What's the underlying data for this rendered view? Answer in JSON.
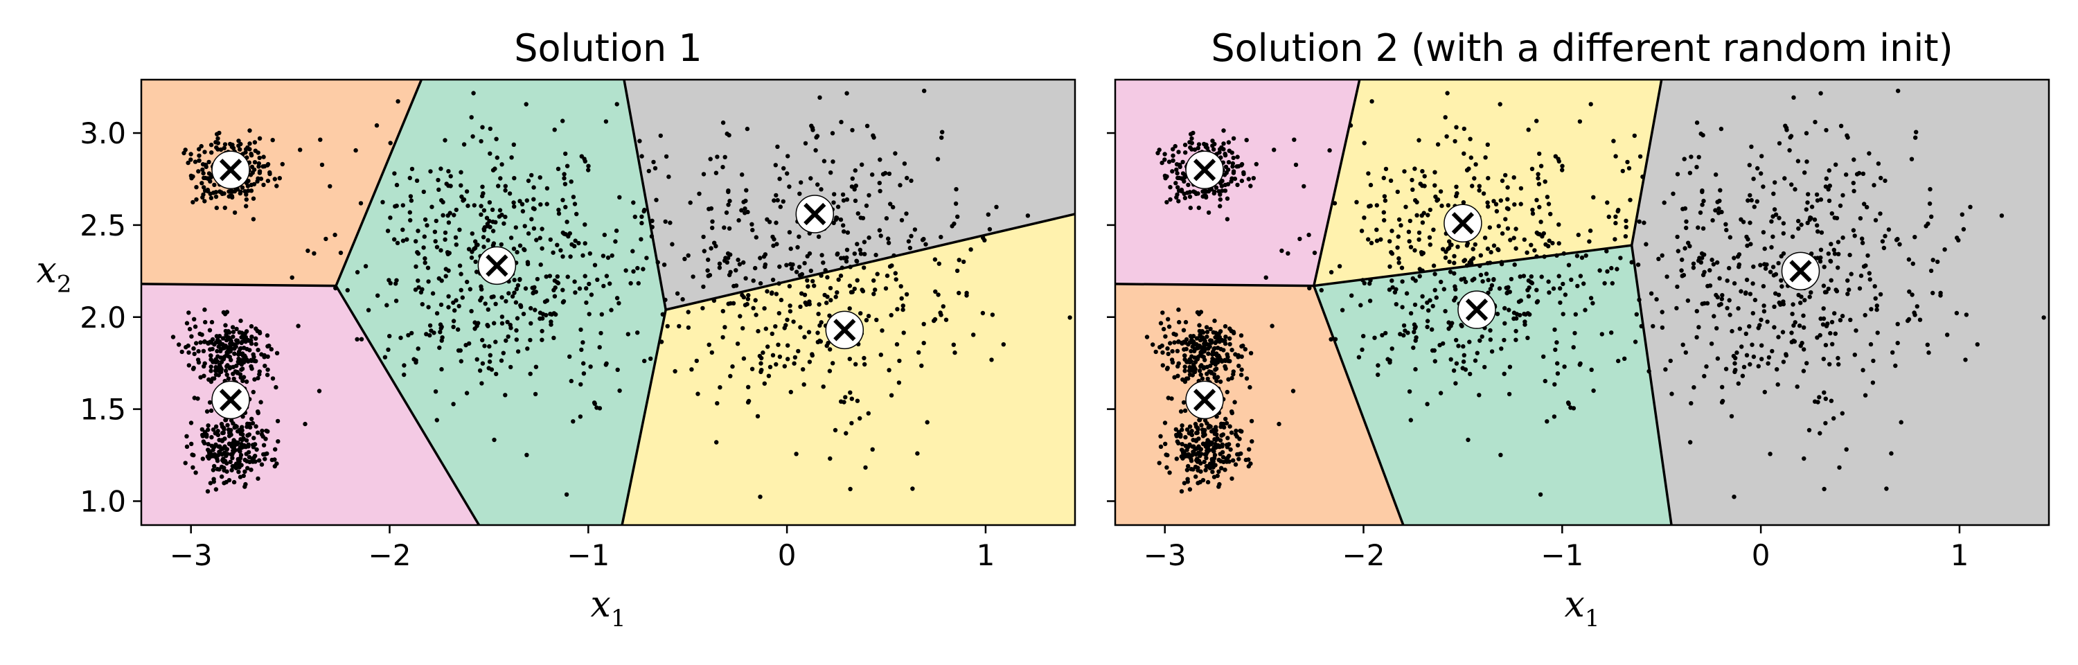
{
  "figure": {
    "title_left": "Solution 1",
    "title_right": "Solution 2 (with a different random init)"
  },
  "chart_data": [
    {
      "type": "scatter",
      "title": "Solution 1",
      "xlabel": "x1",
      "ylabel": "x2",
      "xlim": [
        -3.25,
        1.45
      ],
      "ylim": [
        0.87,
        3.29
      ],
      "x_ticks": [
        "−3",
        "−2",
        "−1",
        "0",
        "1"
      ],
      "x_tick_values": [
        -3,
        -2,
        -1,
        0,
        1
      ],
      "y_ticks": [
        "1.0",
        "1.5",
        "2.0",
        "2.5",
        "3.0"
      ],
      "y_tick_values": [
        1.0,
        1.5,
        2.0,
        2.5,
        3.0
      ],
      "grid": false,
      "blobs": [
        {
          "center": [
            -2.8,
            2.8
          ],
          "std": 0.1,
          "count": 250
        },
        {
          "center": [
            -1.46,
            2.28
          ],
          "std": 0.38,
          "count": 500
        },
        {
          "center": [
            -2.8,
            1.3
          ],
          "std": 0.1,
          "count": 250
        },
        {
          "center": [
            -2.8,
            1.8
          ],
          "std": 0.1,
          "count": 250
        },
        {
          "center": [
            0.1,
            2.23
          ],
          "std": 0.42,
          "count": 500
        }
      ],
      "centroids": [
        [
          -2.8,
          2.8
        ],
        [
          -1.46,
          2.28
        ],
        [
          -2.8,
          1.55
        ],
        [
          0.14,
          2.56
        ],
        [
          0.29,
          1.93
        ]
      ],
      "regions": [
        {
          "color": "#fdcca6",
          "polygon": [
            [
              -3.25,
              3.29
            ],
            [
              -1.84,
              3.29
            ],
            [
              -2.27,
              2.17
            ],
            [
              -3.25,
              2.18
            ]
          ]
        },
        {
          "color": "#b3e2cd",
          "polygon": [
            [
              -1.84,
              3.29
            ],
            [
              -0.82,
              3.29
            ],
            [
              -0.61,
              2.04
            ],
            [
              -0.83,
              0.87
            ],
            [
              -1.55,
              0.87
            ],
            [
              -2.27,
              2.17
            ]
          ]
        },
        {
          "color": "#cbcbcb",
          "polygon": [
            [
              -0.82,
              3.29
            ],
            [
              1.45,
              3.29
            ],
            [
              1.45,
              2.56
            ],
            [
              -0.61,
              2.04
            ]
          ]
        },
        {
          "color": "#f4cae4",
          "polygon": [
            [
              -3.25,
              2.18
            ],
            [
              -2.27,
              2.17
            ],
            [
              -1.55,
              0.87
            ],
            [
              -3.25,
              0.87
            ]
          ]
        },
        {
          "color": "#fff2ae",
          "polygon": [
            [
              -0.61,
              2.04
            ],
            [
              1.45,
              2.56
            ],
            [
              1.45,
              0.87
            ],
            [
              -0.83,
              0.87
            ]
          ]
        }
      ],
      "boundaries": [
        [
          [
            -3.25,
            2.18
          ],
          [
            -2.27,
            2.17
          ]
        ],
        [
          [
            -1.84,
            3.29
          ],
          [
            -2.27,
            2.17
          ]
        ],
        [
          [
            -2.27,
            2.17
          ],
          [
            -1.55,
            0.87
          ]
        ],
        [
          [
            -0.82,
            3.29
          ],
          [
            -0.61,
            2.04
          ]
        ],
        [
          [
            -0.61,
            2.04
          ],
          [
            -0.83,
            0.87
          ]
        ],
        [
          [
            -0.61,
            2.04
          ],
          [
            1.45,
            2.56
          ]
        ]
      ]
    },
    {
      "type": "scatter",
      "title": "Solution 2 (with a different random init)",
      "xlabel": "x1",
      "ylabel": "",
      "xlim": [
        -3.25,
        1.45
      ],
      "ylim": [
        0.87,
        3.29
      ],
      "x_ticks": [
        "−3",
        "−2",
        "−1",
        "0",
        "1"
      ],
      "x_tick_values": [
        -3,
        -2,
        -1,
        0,
        1
      ],
      "y_ticks": [],
      "y_tick_values": [
        1.0,
        1.5,
        2.0,
        2.5,
        3.0
      ],
      "grid": false,
      "blobs": [
        {
          "center": [
            -2.8,
            2.8
          ],
          "std": 0.1,
          "count": 250
        },
        {
          "center": [
            -1.46,
            2.28
          ],
          "std": 0.38,
          "count": 500
        },
        {
          "center": [
            -2.8,
            1.3
          ],
          "std": 0.1,
          "count": 250
        },
        {
          "center": [
            -2.8,
            1.8
          ],
          "std": 0.1,
          "count": 250
        },
        {
          "center": [
            0.1,
            2.23
          ],
          "std": 0.42,
          "count": 500
        }
      ],
      "centroids": [
        [
          -2.8,
          2.8
        ],
        [
          -1.5,
          2.51
        ],
        [
          -2.8,
          1.55
        ],
        [
          -1.43,
          2.04
        ],
        [
          0.2,
          2.25
        ]
      ],
      "regions": [
        {
          "color": "#f4cae4",
          "polygon": [
            [
              -3.25,
              3.29
            ],
            [
              -2.02,
              3.29
            ],
            [
              -2.25,
              2.17
            ],
            [
              -3.25,
              2.18
            ]
          ]
        },
        {
          "color": "#fff2ae",
          "polygon": [
            [
              -2.02,
              3.29
            ],
            [
              -0.5,
              3.29
            ],
            [
              -0.65,
              2.39
            ],
            [
              -2.25,
              2.17
            ]
          ]
        },
        {
          "color": "#cbcbcb",
          "polygon": [
            [
              -0.5,
              3.29
            ],
            [
              1.45,
              3.29
            ],
            [
              1.45,
              0.87
            ],
            [
              -0.45,
              0.87
            ],
            [
              -0.65,
              2.39
            ]
          ]
        },
        {
          "color": "#fdcca6",
          "polygon": [
            [
              -3.25,
              2.18
            ],
            [
              -2.25,
              2.17
            ],
            [
              -1.8,
              0.87
            ],
            [
              -3.25,
              0.87
            ]
          ]
        },
        {
          "color": "#b3e2cd",
          "polygon": [
            [
              -2.25,
              2.17
            ],
            [
              -0.65,
              2.39
            ],
            [
              -0.45,
              0.87
            ],
            [
              -1.8,
              0.87
            ]
          ]
        }
      ],
      "boundaries": [
        [
          [
            -3.25,
            2.18
          ],
          [
            -2.25,
            2.17
          ]
        ],
        [
          [
            -2.02,
            3.29
          ],
          [
            -2.25,
            2.17
          ]
        ],
        [
          [
            -2.25,
            2.17
          ],
          [
            -1.8,
            0.87
          ]
        ],
        [
          [
            -2.25,
            2.17
          ],
          [
            -0.65,
            2.39
          ]
        ],
        [
          [
            -0.5,
            3.29
          ],
          [
            -0.65,
            2.39
          ]
        ],
        [
          [
            -0.65,
            2.39
          ],
          [
            -0.45,
            0.87
          ]
        ]
      ]
    }
  ]
}
